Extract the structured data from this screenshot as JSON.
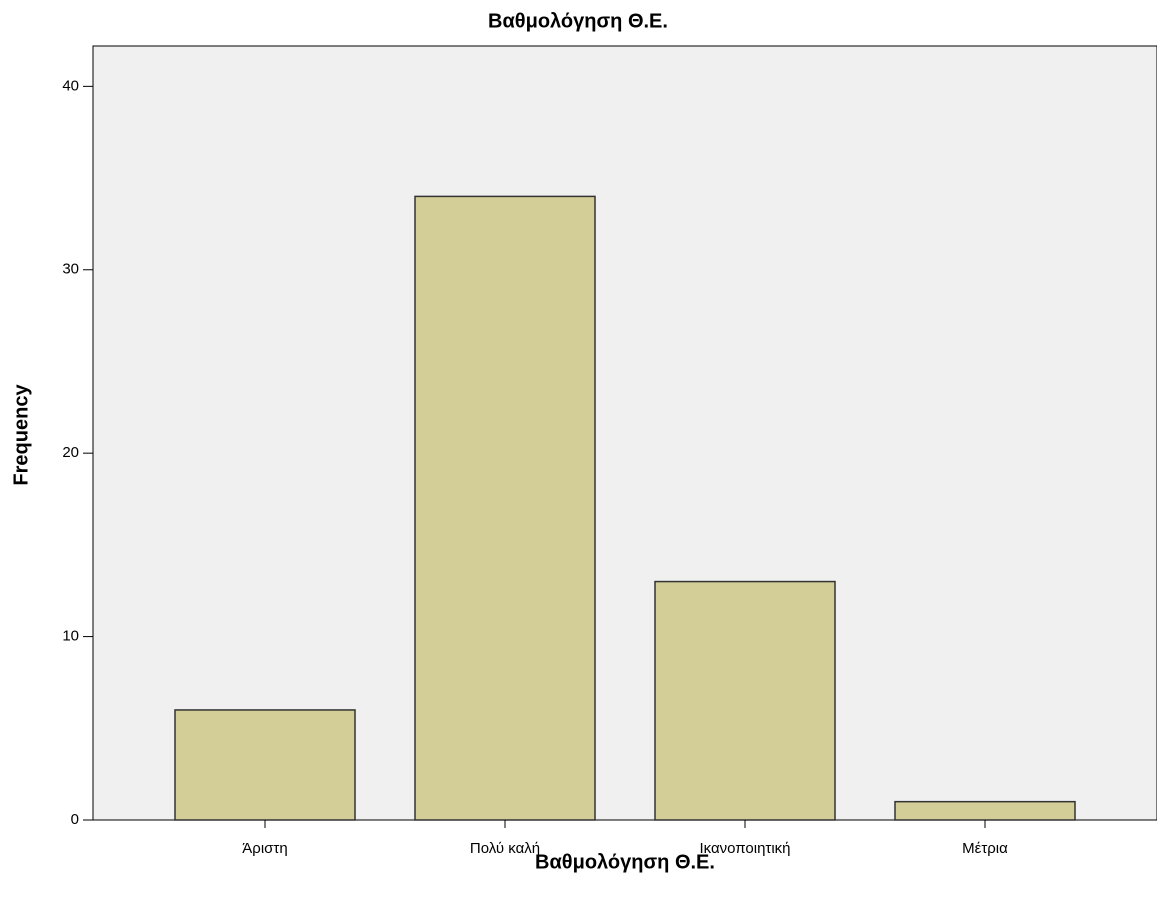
{
  "chart_data": {
    "type": "bar",
    "title": "Βαθμολόγηση Θ.Ε.",
    "x_label": "Βαθμολόγηση Θ.Ε.",
    "y_label": "Frequency",
    "categories": [
      "Άριστη",
      "Πολύ καλή",
      "Ικανοποιητική",
      "Μέτρια"
    ],
    "values": [
      6,
      34,
      13,
      1
    ],
    "color": "#d3ce97",
    "ylim": [
      0,
      42.2
    ],
    "yticks": [
      0,
      10,
      20,
      30,
      40
    ],
    "grid": false
  }
}
